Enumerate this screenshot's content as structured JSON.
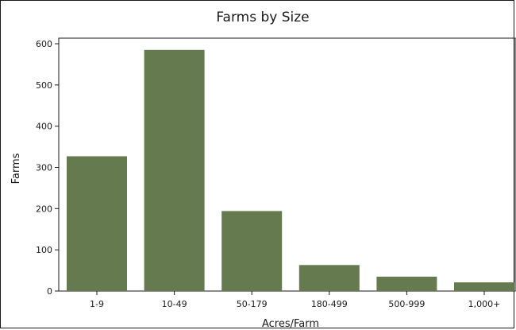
{
  "chart_data": {
    "type": "bar",
    "title": "Farms by Size",
    "xlabel": "Acres/Farm",
    "ylabel": "Farms",
    "categories": [
      "1-9",
      "10-49",
      "50-179",
      "180-499",
      "500-999",
      "1,000+"
    ],
    "values": [
      327,
      585,
      194,
      63,
      35,
      21
    ],
    "ylim": [
      0,
      600
    ],
    "yticks": [
      "0",
      "100",
      "200",
      "300",
      "400",
      "500",
      "600"
    ],
    "grid": false,
    "bar_color": "#667a4f"
  }
}
